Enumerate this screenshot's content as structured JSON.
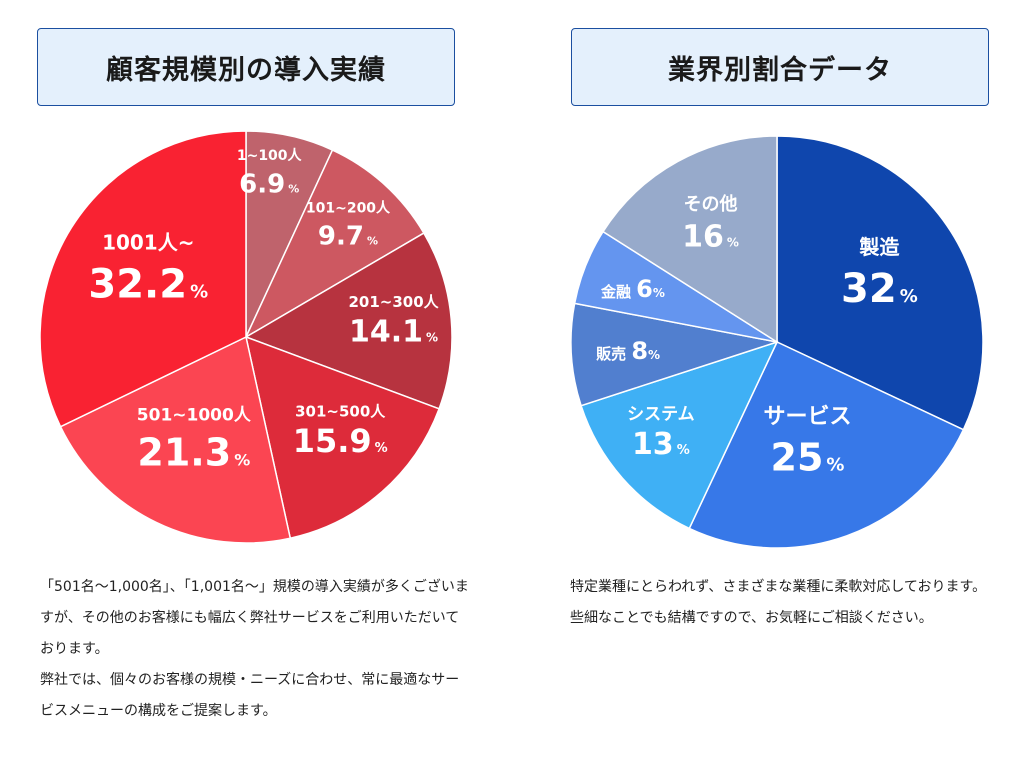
{
  "chart_data": [
    {
      "type": "pie",
      "title": "顧客規模別の導入実績",
      "start": "top-clockwise",
      "slices": [
        {
          "label": "1~100人",
          "value": 6.9,
          "value_text": "6.9",
          "color": "#bf636c"
        },
        {
          "label": "101~200人",
          "value": 9.7,
          "value_text": "9.7",
          "color": "#cd5861"
        },
        {
          "label": "201~300人",
          "value": 14.1,
          "value_text": "14.1",
          "color": "#b7333f"
        },
        {
          "label": "301~500人",
          "value": 15.9,
          "value_text": "15.9",
          "color": "#dd2b3a"
        },
        {
          "label": "501~1000人",
          "value": 21.3,
          "value_text": "21.3",
          "color": "#fb4552"
        },
        {
          "label": "1001人~",
          "value": 32.2,
          "value_text": "32.2",
          "color": "#f92232"
        }
      ],
      "unit": "%"
    },
    {
      "type": "pie",
      "title": "業界別割合データ",
      "start": "top-clockwise",
      "slices": [
        {
          "label": "製造",
          "value": 32,
          "value_text": "32",
          "color": "#0f46ad"
        },
        {
          "label": "サービス",
          "value": 25,
          "value_text": "25",
          "color": "#3778e8"
        },
        {
          "label": "システム",
          "value": 13,
          "value_text": "13",
          "color": "#3fb0f5"
        },
        {
          "label": "販売",
          "value": 8,
          "value_text": "8",
          "color": "#517fcf"
        },
        {
          "label": "金融",
          "value": 6,
          "value_text": "6",
          "color": "#6495ef"
        },
        {
          "label": "その他",
          "value": 16,
          "value_text": "16",
          "color": "#97aacb"
        }
      ],
      "unit": "%"
    }
  ],
  "left": {
    "title": "顧客規模別の導入実績",
    "description": [
      "「501名～1,000名」、「1,001名～」規模の導入実績が多くございますが、その他のお客様にも幅広く弊社サービスをご利用いただいております。",
      "弊社では、個々のお客様の規模・ニーズに合わせ、常に最適なサービスメニューの構成をご提案します。"
    ]
  },
  "right": {
    "title": "業界別割合データ",
    "description": [
      "特定業種にとらわれず、さまざまな業種に柔軟対応しております。些細なことでも結構ですので、お気軽にご相談ください。"
    ]
  }
}
